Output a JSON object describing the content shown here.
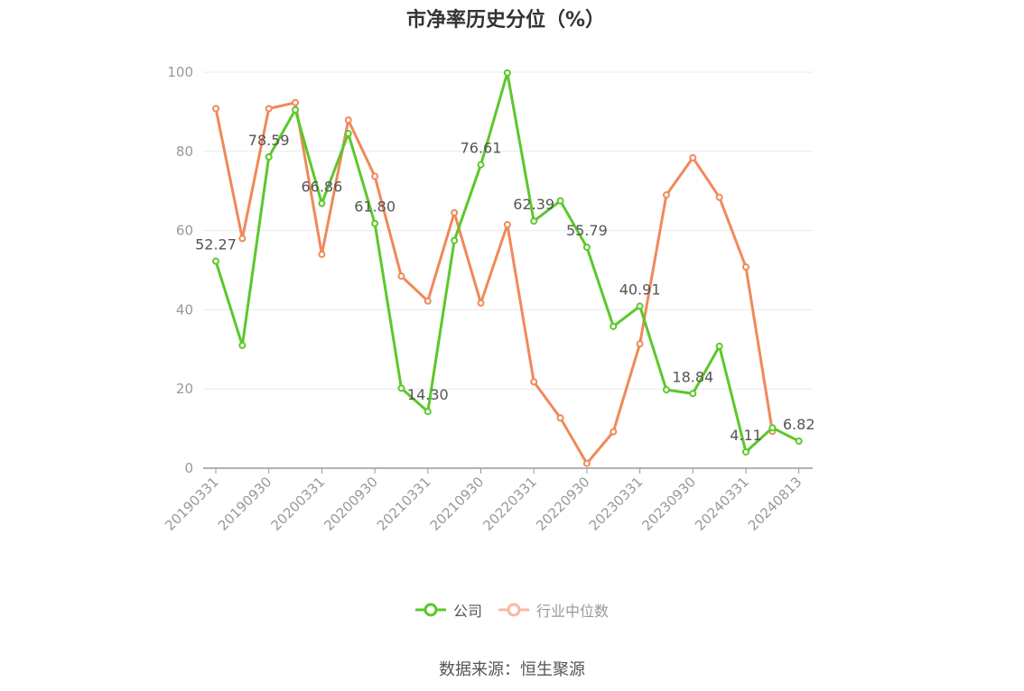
{
  "chart_data": {
    "type": "line",
    "title": "市净率历史分位（%）",
    "ylim": [
      0,
      100
    ],
    "yticks": [
      0,
      20,
      40,
      60,
      80,
      100
    ],
    "x": [
      "20190331",
      "20190630",
      "20190930",
      "20191231",
      "20200331",
      "20200630",
      "20200930",
      "20201231",
      "20210331",
      "20210630",
      "20210930",
      "20211231",
      "20220331",
      "20220630",
      "20220930",
      "20221231",
      "20230331",
      "20230630",
      "20230930",
      "20231231",
      "20240331",
      "20240630",
      "20240813"
    ],
    "xtick_labels": [
      "20190331",
      "20190930",
      "20200331",
      "20200930",
      "20210331",
      "20210930",
      "20220331",
      "20220930",
      "20230331",
      "20230930",
      "20240331",
      "20240813"
    ],
    "xtick_indices": [
      0,
      2,
      4,
      6,
      8,
      10,
      12,
      14,
      16,
      18,
      20,
      22
    ],
    "grid": true,
    "legend_position": "bottom",
    "series": [
      {
        "name": "公司",
        "color": "#5cc82a",
        "values": [
          52.27,
          31.0,
          78.59,
          90.5,
          66.86,
          84.5,
          61.8,
          20.2,
          14.3,
          57.5,
          76.61,
          99.8,
          62.39,
          67.5,
          55.79,
          35.8,
          40.91,
          19.8,
          18.84,
          30.8,
          4.11,
          10.2,
          6.82
        ],
        "labels": [
          "52.27",
          null,
          "78.59",
          null,
          "66.86",
          null,
          "61.80",
          null,
          "14.30",
          null,
          "76.61",
          null,
          "62.39",
          null,
          "55.79",
          null,
          "40.91",
          null,
          "18.84",
          null,
          "4.11",
          null,
          "6.82"
        ]
      },
      {
        "name": "行业中位数",
        "color": "#f0895a",
        "values": [
          90.8,
          58.0,
          90.8,
          92.3,
          54.0,
          87.9,
          73.7,
          48.5,
          42.2,
          64.5,
          41.7,
          61.5,
          21.8,
          12.7,
          1.2,
          9.2,
          31.4,
          69.0,
          78.4,
          68.4,
          50.8,
          9.3,
          null
        ]
      }
    ]
  },
  "legend": {
    "items": [
      {
        "label": "公司",
        "color": "#5cc82a",
        "text_color": "#555555"
      },
      {
        "label": "行业中位数",
        "color": "#f8b9a0",
        "text_color": "#999999"
      }
    ]
  },
  "source": "数据来源：恒生聚源"
}
